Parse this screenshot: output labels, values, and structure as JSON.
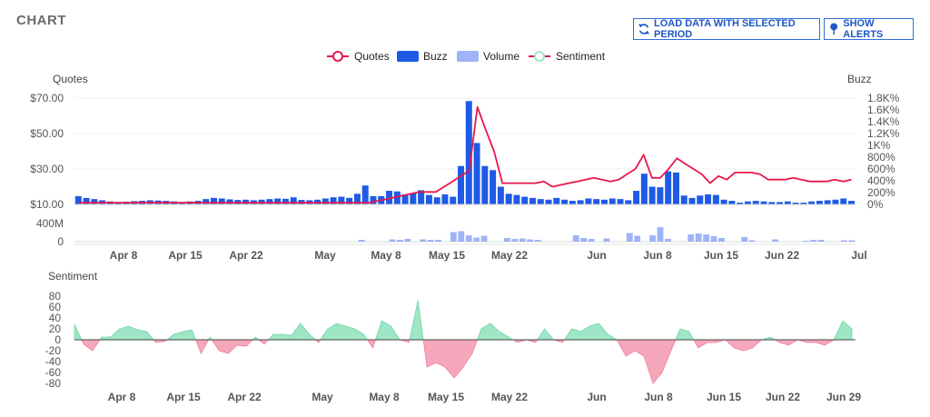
{
  "header": {
    "title": "CHART",
    "load_button_label": "LOAD DATA WITH SELECTED PERIOD",
    "alerts_button_label": "SHOW ALERTS"
  },
  "legend": [
    "Quotes",
    "Buzz",
    "Volume",
    "Sentiment"
  ],
  "colors": {
    "quotes": "#e8174a",
    "buzz": "#1e5ae6",
    "volume": "#9fb4f7",
    "sentiment_pos": "#9ee6c6",
    "sentiment_neg": "#f6a7bb",
    "button": "#2f6fd8"
  },
  "chart_data": [
    {
      "type": "line",
      "name": "Quotes",
      "title": "CHART",
      "ylabel": "Quotes",
      "y_ticks": [
        "$10.00",
        "$30.00",
        "$50.00",
        "$70.00"
      ],
      "ylim": [
        10,
        70
      ],
      "x_tick_labels": [
        "Apr 8",
        "Apr 15",
        "Apr 22",
        "May",
        "May 8",
        "May 15",
        "May 22",
        "Jun",
        "Jun 8",
        "Jun 15",
        "Jun 22",
        "Jul"
      ],
      "values": [
        11,
        11,
        11,
        11,
        11,
        11,
        11,
        11,
        11,
        11,
        11,
        11,
        11,
        11,
        11,
        11,
        11,
        11,
        11,
        11,
        11,
        11,
        11,
        11,
        11,
        11,
        11,
        11,
        11,
        11,
        11,
        11,
        11,
        11,
        11,
        11,
        12,
        13,
        14,
        15,
        16,
        17,
        17,
        17,
        20,
        23,
        26,
        29,
        65,
        52,
        40,
        22,
        22,
        22,
        22,
        22,
        23,
        20,
        21,
        22,
        23,
        24,
        25,
        24,
        23,
        24,
        27,
        30,
        38,
        25,
        25,
        30,
        36,
        33,
        30,
        27,
        22,
        26,
        24,
        28,
        28,
        28,
        27,
        24,
        24,
        24,
        25,
        24,
        23,
        23,
        23,
        24,
        23,
        24
      ],
      "series_name_right": "Buzz",
      "y2label": "Buzz",
      "y2_ticks": [
        "0%",
        "200%",
        "400%",
        "600%",
        "800%",
        "1K%",
        "1.2K%",
        "1.4K%",
        "1.6K%",
        "1.8K%"
      ],
      "y2lim": [
        0,
        1800
      ],
      "buzz_values": [
        140,
        110,
        90,
        70,
        50,
        40,
        45,
        55,
        60,
        70,
        65,
        60,
        50,
        40,
        50,
        60,
        90,
        110,
        100,
        85,
        75,
        80,
        70,
        80,
        90,
        100,
        95,
        120,
        75,
        70,
        80,
        100,
        120,
        130,
        110,
        180,
        320,
        140,
        140,
        230,
        220,
        170,
        190,
        240,
        160,
        120,
        170,
        130,
        650,
        1750,
        1040,
        650,
        580,
        300,
        180,
        160,
        130,
        110,
        90,
        80,
        110,
        80,
        60,
        70,
        100,
        90,
        80,
        100,
        90,
        70,
        230,
        520,
        300,
        290,
        560,
        540,
        150,
        110,
        150,
        170,
        160,
        80,
        60,
        30,
        50,
        60,
        50,
        40,
        40,
        50,
        30,
        30,
        50,
        60,
        70,
        80,
        100,
        60
      ]
    },
    {
      "type": "bar",
      "name": "Volume",
      "y_ticks": [
        "0",
        "400M"
      ],
      "values_M": [
        0,
        0,
        0,
        0,
        0,
        0,
        0,
        0,
        0,
        0,
        0,
        0,
        0,
        0,
        0,
        0,
        0,
        0,
        0,
        0,
        0,
        0,
        0,
        0,
        0,
        0,
        0,
        0,
        0,
        0,
        0,
        0,
        0,
        0,
        0,
        0,
        0,
        40,
        0,
        0,
        0,
        50,
        40,
        60,
        0,
        50,
        40,
        40,
        0,
        210,
        230,
        140,
        90,
        130,
        0,
        0,
        80,
        60,
        70,
        50,
        40,
        0,
        0,
        0,
        0,
        140,
        80,
        60,
        0,
        70,
        0,
        0,
        190,
        130,
        0,
        140,
        320,
        60,
        0,
        0,
        160,
        180,
        160,
        120,
        80,
        0,
        0,
        100,
        30,
        0,
        0,
        50,
        0,
        0,
        0,
        20,
        40,
        40,
        0,
        0,
        30,
        30
      ]
    },
    {
      "type": "area",
      "name": "Sentiment",
      "ylabel": "Sentiment",
      "y_ticks": [
        "80",
        "60",
        "40",
        "20",
        "0",
        "-20",
        "-40",
        "-60",
        "-80"
      ],
      "ylim": [
        -80,
        80
      ],
      "x_tick_labels": [
        "Apr 8",
        "Apr 15",
        "Apr 22",
        "May",
        "May 8",
        "May 15",
        "May 22",
        "Jun",
        "Jun 8",
        "Jun 15",
        "Jun 22",
        "Jun 29"
      ],
      "values": [
        28,
        -8,
        -20,
        5,
        5,
        20,
        25,
        18,
        15,
        -5,
        -3,
        10,
        15,
        18,
        -25,
        5,
        -20,
        -25,
        -10,
        -12,
        5,
        -8,
        10,
        10,
        8,
        30,
        10,
        -5,
        20,
        30,
        25,
        20,
        10,
        -15,
        35,
        25,
        0,
        -5,
        72,
        -50,
        -42,
        -50,
        -70,
        -50,
        -25,
        20,
        30,
        15,
        5,
        -5,
        0,
        -5,
        20,
        0,
        -5,
        20,
        15,
        25,
        30,
        10,
        0,
        -30,
        -20,
        -30,
        -80,
        -60,
        -20,
        20,
        15,
        -15,
        -5,
        -5,
        0,
        -15,
        -20,
        -15,
        0,
        5,
        -5,
        -10,
        0,
        -5,
        -5,
        -10,
        0,
        35,
        20
      ]
    }
  ]
}
